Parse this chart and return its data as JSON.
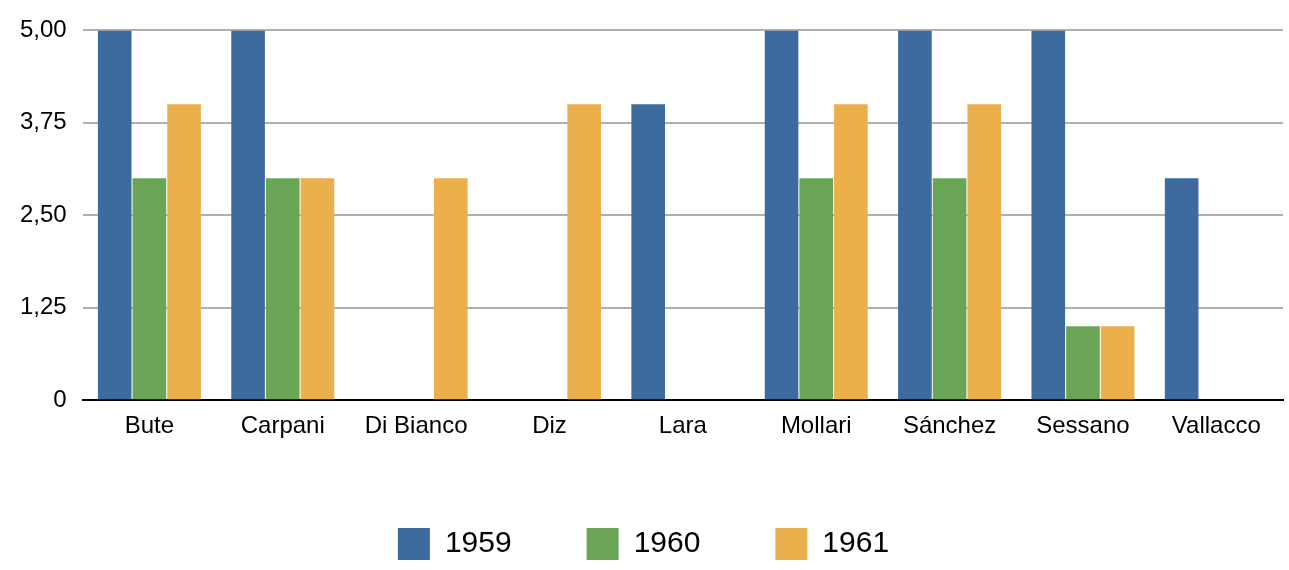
{
  "chart_data": {
    "type": "bar",
    "categories": [
      "Bute",
      "Carpani",
      "Di Bianco",
      "Diz",
      "Lara",
      "Mollari",
      "Sánchez",
      "Sessano",
      "Vallacco"
    ],
    "series": [
      {
        "name": "1959",
        "color": "#3d6b9e",
        "values": [
          5,
          5,
          null,
          null,
          4,
          5,
          5,
          5,
          3
        ]
      },
      {
        "name": "1960",
        "color": "#6aa556",
        "values": [
          3,
          3,
          null,
          null,
          null,
          3,
          3,
          1,
          null
        ]
      },
      {
        "name": "1961",
        "color": "#ebaf4c",
        "values": [
          4,
          3,
          3,
          4,
          null,
          4,
          4,
          1,
          null
        ]
      }
    ],
    "ylim": [
      0,
      5
    ],
    "yticks": [
      0,
      {
        "value": 1.25,
        "label": "1,25"
      },
      {
        "value": 2.5,
        "label": "2,50"
      },
      {
        "value": 3.75,
        "label": "3,75"
      },
      {
        "value": 5,
        "label": "5,00"
      }
    ],
    "grid": "y",
    "legend": "bottom"
  }
}
